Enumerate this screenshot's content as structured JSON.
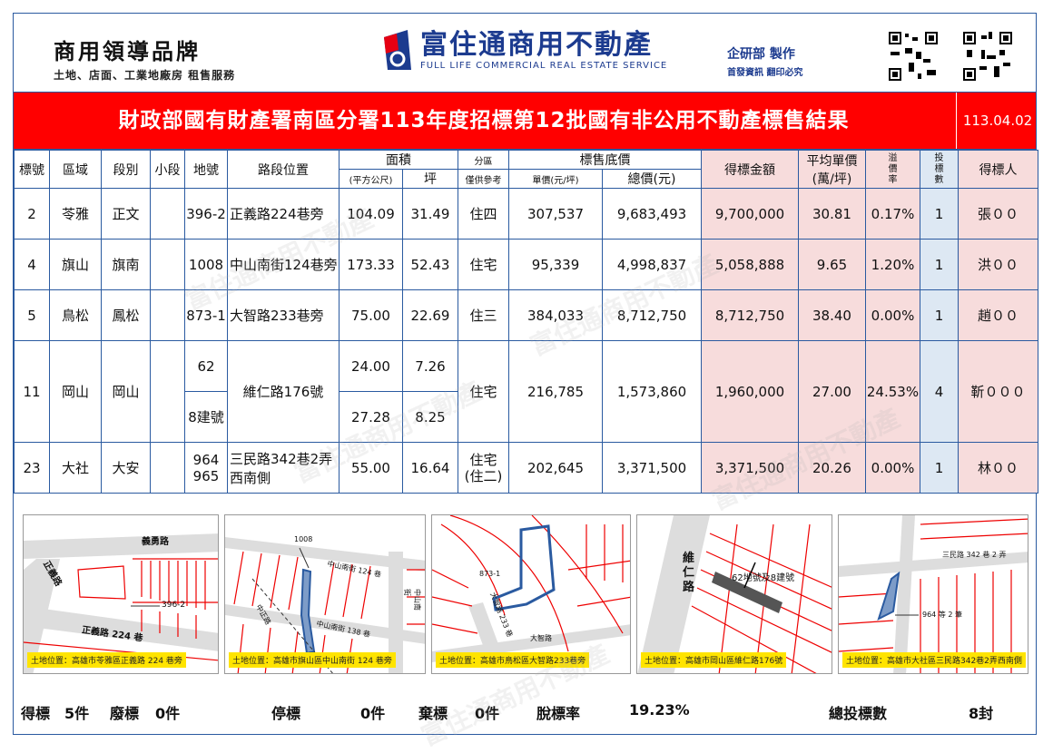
{
  "header": {
    "brand_left_title": "商用領導品牌",
    "brand_left_sub": "土地、店面、工業地廠房 租售服務",
    "brand_center_name": "富住通商用不動產",
    "brand_center_en": "FULL LIFE COMMERCIAL REAL ESTATE SERVICE",
    "brand_right_a": "企研部 製作",
    "brand_right_b": "首發資訊 翻印必究"
  },
  "title": "財政部國有財產署南區分署113年度招標第12批國有非公用不動產標售結果",
  "date": "113.04.02",
  "table": {
    "headers": {
      "no": "標號",
      "area": "區域",
      "section": "段別",
      "subsection": "小段",
      "lot": "地號",
      "road": "路段位置",
      "size": "面積",
      "sqm": "(平方公尺)",
      "ping": "坪",
      "zone": "分區",
      "zone_sub": "僅供參考",
      "base": "標售底價",
      "unit": "單價(元/坪)",
      "total": "總價(元)",
      "won": "得標金額",
      "avg": "平均單價",
      "avg_sub": "(萬/坪)",
      "premium": "溢價率",
      "premium_chars": [
        "溢",
        "價",
        "率"
      ],
      "bids": "投標數",
      "bids_chars": [
        "投",
        "標",
        "數"
      ],
      "winner": "得標人"
    },
    "rows": [
      {
        "no": "2",
        "area": "苓雅",
        "section": "正文",
        "lot": "396-2",
        "road": "正義路224巷旁",
        "sqm": "104.09",
        "ping": "31.49",
        "zone": "住四",
        "unit": "307,537",
        "total": "9,683,493",
        "won": "9,700,000",
        "avg": "30.81",
        "premium": "0.17%",
        "bids": "1",
        "winner": "張００"
      },
      {
        "no": "4",
        "area": "旗山",
        "section": "旗南",
        "lot": "1008",
        "road": "中山南街124巷旁",
        "sqm": "173.33",
        "ping": "52.43",
        "zone": "住宅",
        "unit": "95,339",
        "total": "4,998,837",
        "won": "5,058,888",
        "avg": "9.65",
        "premium": "1.20%",
        "bids": "1",
        "winner": "洪００"
      },
      {
        "no": "5",
        "area": "鳥松",
        "section": "鳳松",
        "lot": "873-1",
        "road": "大智路233巷旁",
        "sqm": "75.00",
        "ping": "22.69",
        "zone": "住三",
        "unit": "384,033",
        "total": "8,712,750",
        "won": "8,712,750",
        "avg": "38.40",
        "premium": "0.00%",
        "bids": "1",
        "winner": "趙００"
      },
      {
        "no": "11",
        "area": "岡山",
        "section": "岡山",
        "lot": "62",
        "lot2": "8建號",
        "road": "維仁路176號",
        "sqm": "24.00",
        "ping": "7.26",
        "sqm2": "27.28",
        "ping2": "8.25",
        "zone": "住宅",
        "unit": "216,785",
        "total": "1,573,860",
        "won": "1,960,000",
        "avg": "27.00",
        "premium": "24.53%",
        "bids": "4",
        "winner": "靳０００"
      },
      {
        "no": "23",
        "area": "大社",
        "section": "大安",
        "lot": "964",
        "lot2": "965",
        "road": "三民路342巷2弄西南側",
        "sqm": "55.00",
        "ping": "16.64",
        "zone": "住宅",
        "zone2": "(住二)",
        "unit": "202,645",
        "total": "3,371,500",
        "won": "3,371,500",
        "avg": "20.26",
        "premium": "0.00%",
        "bids": "1",
        "winner": "林００"
      }
    ]
  },
  "maps": [
    {
      "caption": "土地位置：高雄市苓雅區正義路 224 巷旁",
      "labels": [
        "義勇路",
        "正義路",
        "396-2",
        "正義路 224 巷"
      ]
    },
    {
      "caption": "土地位置：高雄市旗山區中山南街 124 巷旁",
      "labels": [
        "1008",
        "中山南街 124 巷",
        "中山南街",
        "中山南街 138 巷",
        "中正路"
      ]
    },
    {
      "caption": "土地位置：高雄市鳥松區大智路233巷旁",
      "labels": [
        "873-1",
        "大智路 233 巷",
        "大智路"
      ]
    },
    {
      "caption": "土地位置：高雄市岡山區維仁路176號",
      "labels": [
        "維仁路",
        "62地號及8建號"
      ]
    },
    {
      "caption": "土地位置：高雄市大社區三民路342巷2弄西南側",
      "labels": [
        "三民路 342 巷 2 弄",
        "964 等 2 筆"
      ]
    }
  ],
  "footer": {
    "won_label": "得標",
    "won_count": "5件",
    "void_label": "廢標",
    "void_count": "0件",
    "stop_label": "停標",
    "stop_count": "0件",
    "abandon_label": "棄標",
    "abandon_count": "0件",
    "rate_label": "脫標率",
    "rate_value": "19.23%",
    "total_label": "總投標數",
    "total_value": "8封"
  },
  "watermark": "富住通商用不動產",
  "colors": {
    "title_bg": "#ff0000",
    "pink_cell": "#f7dcdc",
    "blue_cell": "#dde8f3",
    "brand_blue": "#1c3b8f",
    "border": "#2a5aa0"
  }
}
